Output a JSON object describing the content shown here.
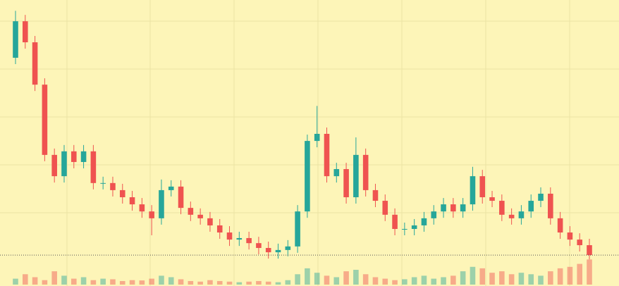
{
  "chart_data": {
    "type": "candlestick",
    "categories": [
      null,
      null,
      null,
      null,
      null,
      null,
      null,
      null,
      null,
      null,
      null,
      null,
      null,
      null,
      null,
      null,
      null,
      null,
      null,
      null,
      null,
      null,
      null,
      null,
      null,
      null,
      null,
      null,
      null,
      null,
      null,
      null,
      null,
      null,
      null,
      null,
      null,
      null,
      null,
      null,
      null,
      null,
      null,
      null,
      null,
      null,
      null,
      null,
      null,
      null,
      null,
      null,
      null,
      null,
      null,
      null,
      null,
      null,
      null,
      null
    ],
    "open": [
      80,
      94.4,
      86.1,
      69.4,
      41.7,
      33.3,
      43.1,
      38.9,
      43.1,
      30.6,
      30.6,
      27.8,
      25.0,
      22.2,
      19.4,
      16.7,
      27.8,
      29.2,
      20.8,
      18.1,
      16.7,
      13.9,
      11.1,
      8.3,
      8.9,
      6.9,
      5.0,
      3.3,
      4.2,
      5.6,
      19.4,
      47.2,
      50.0,
      33.3,
      36.1,
      25.0,
      41.7,
      27.8,
      23.6,
      18.1,
      12.5,
      12.5,
      13.9,
      16.7,
      19.4,
      22.2,
      19.4,
      22.2,
      33.3,
      25.0,
      23.6,
      18.1,
      16.7,
      19.4,
      23.6,
      26.4,
      16.7,
      11.1,
      8.3,
      6.1
    ],
    "high": [
      98.5,
      96.9,
      88.6,
      71.9,
      44.2,
      45.6,
      45.6,
      45.6,
      45.6,
      33.1,
      33.1,
      30.3,
      27.5,
      24.7,
      21.9,
      32,
      31.7,
      31.7,
      23.3,
      20.6,
      19.2,
      16.4,
      13.6,
      11.4,
      11.4,
      9.4,
      7.5,
      6.7,
      8.1,
      21.9,
      49.7,
      61,
      52.5,
      38.6,
      38.6,
      48.6,
      44.2,
      30.3,
      26.1,
      20.6,
      15.0,
      16.4,
      19.2,
      21.9,
      24.7,
      24.7,
      24.7,
      37,
      35.8,
      27.5,
      26.1,
      20.6,
      21.9,
      26.1,
      28.9,
      28.9,
      19.2,
      13.6,
      10.8,
      8.6
    ],
    "low": [
      77.5,
      83.6,
      66.9,
      39.2,
      30.8,
      30.8,
      36.4,
      36.4,
      28.1,
      28.1,
      25.3,
      22.5,
      19.7,
      16.9,
      10,
      14.2,
      25.3,
      18.3,
      15.6,
      14.2,
      11.4,
      8.6,
      5.8,
      5.8,
      4.4,
      2.5,
      0.8,
      0.8,
      1.7,
      3.1,
      16.9,
      44.7,
      30.8,
      30.8,
      22.5,
      22.5,
      25.3,
      21.1,
      15.6,
      10.0,
      10.0,
      10.0,
      11.4,
      14.2,
      16.9,
      16.9,
      16.9,
      19.7,
      22.5,
      21.1,
      15.6,
      14.2,
      14.2,
      16.9,
      21.1,
      14.2,
      8.6,
      5.8,
      3.6,
      0.5
    ],
    "close": [
      94.4,
      86.1,
      69.4,
      41.7,
      33.3,
      43.1,
      38.9,
      43.1,
      30.6,
      30.6,
      27.8,
      25.0,
      22.2,
      19.4,
      16.7,
      27.8,
      29.2,
      20.8,
      18.1,
      16.7,
      13.9,
      11.1,
      8.3,
      8.9,
      6.9,
      5.0,
      3.3,
      4.2,
      5.6,
      19.4,
      47.2,
      50.0,
      33.3,
      36.1,
      25.0,
      41.7,
      27.8,
      23.6,
      18.1,
      12.5,
      12.5,
      13.9,
      16.7,
      19.4,
      22.2,
      19.4,
      22.2,
      33.3,
      25.0,
      23.6,
      18.1,
      16.7,
      19.4,
      23.6,
      26.4,
      16.7,
      11.1,
      8.3,
      6.1,
      2.2
    ],
    "volume": [
      20,
      35,
      25,
      15,
      45,
      30,
      20,
      25,
      15,
      20,
      18,
      12,
      15,
      14,
      20,
      30,
      25,
      18,
      12,
      10,
      15,
      12,
      10,
      8,
      10,
      12,
      10,
      8,
      15,
      35,
      55,
      40,
      30,
      25,
      45,
      50,
      35,
      25,
      20,
      15,
      18,
      25,
      30,
      20,
      25,
      30,
      45,
      60,
      55,
      40,
      45,
      35,
      40,
      35,
      30,
      45,
      55,
      60,
      70,
      85
    ],
    "ylim": [
      0,
      100
    ],
    "y2lim": [
      0,
      100
    ],
    "up_color": "#26a69a",
    "down_color": "#ef5350",
    "grid": true
  }
}
